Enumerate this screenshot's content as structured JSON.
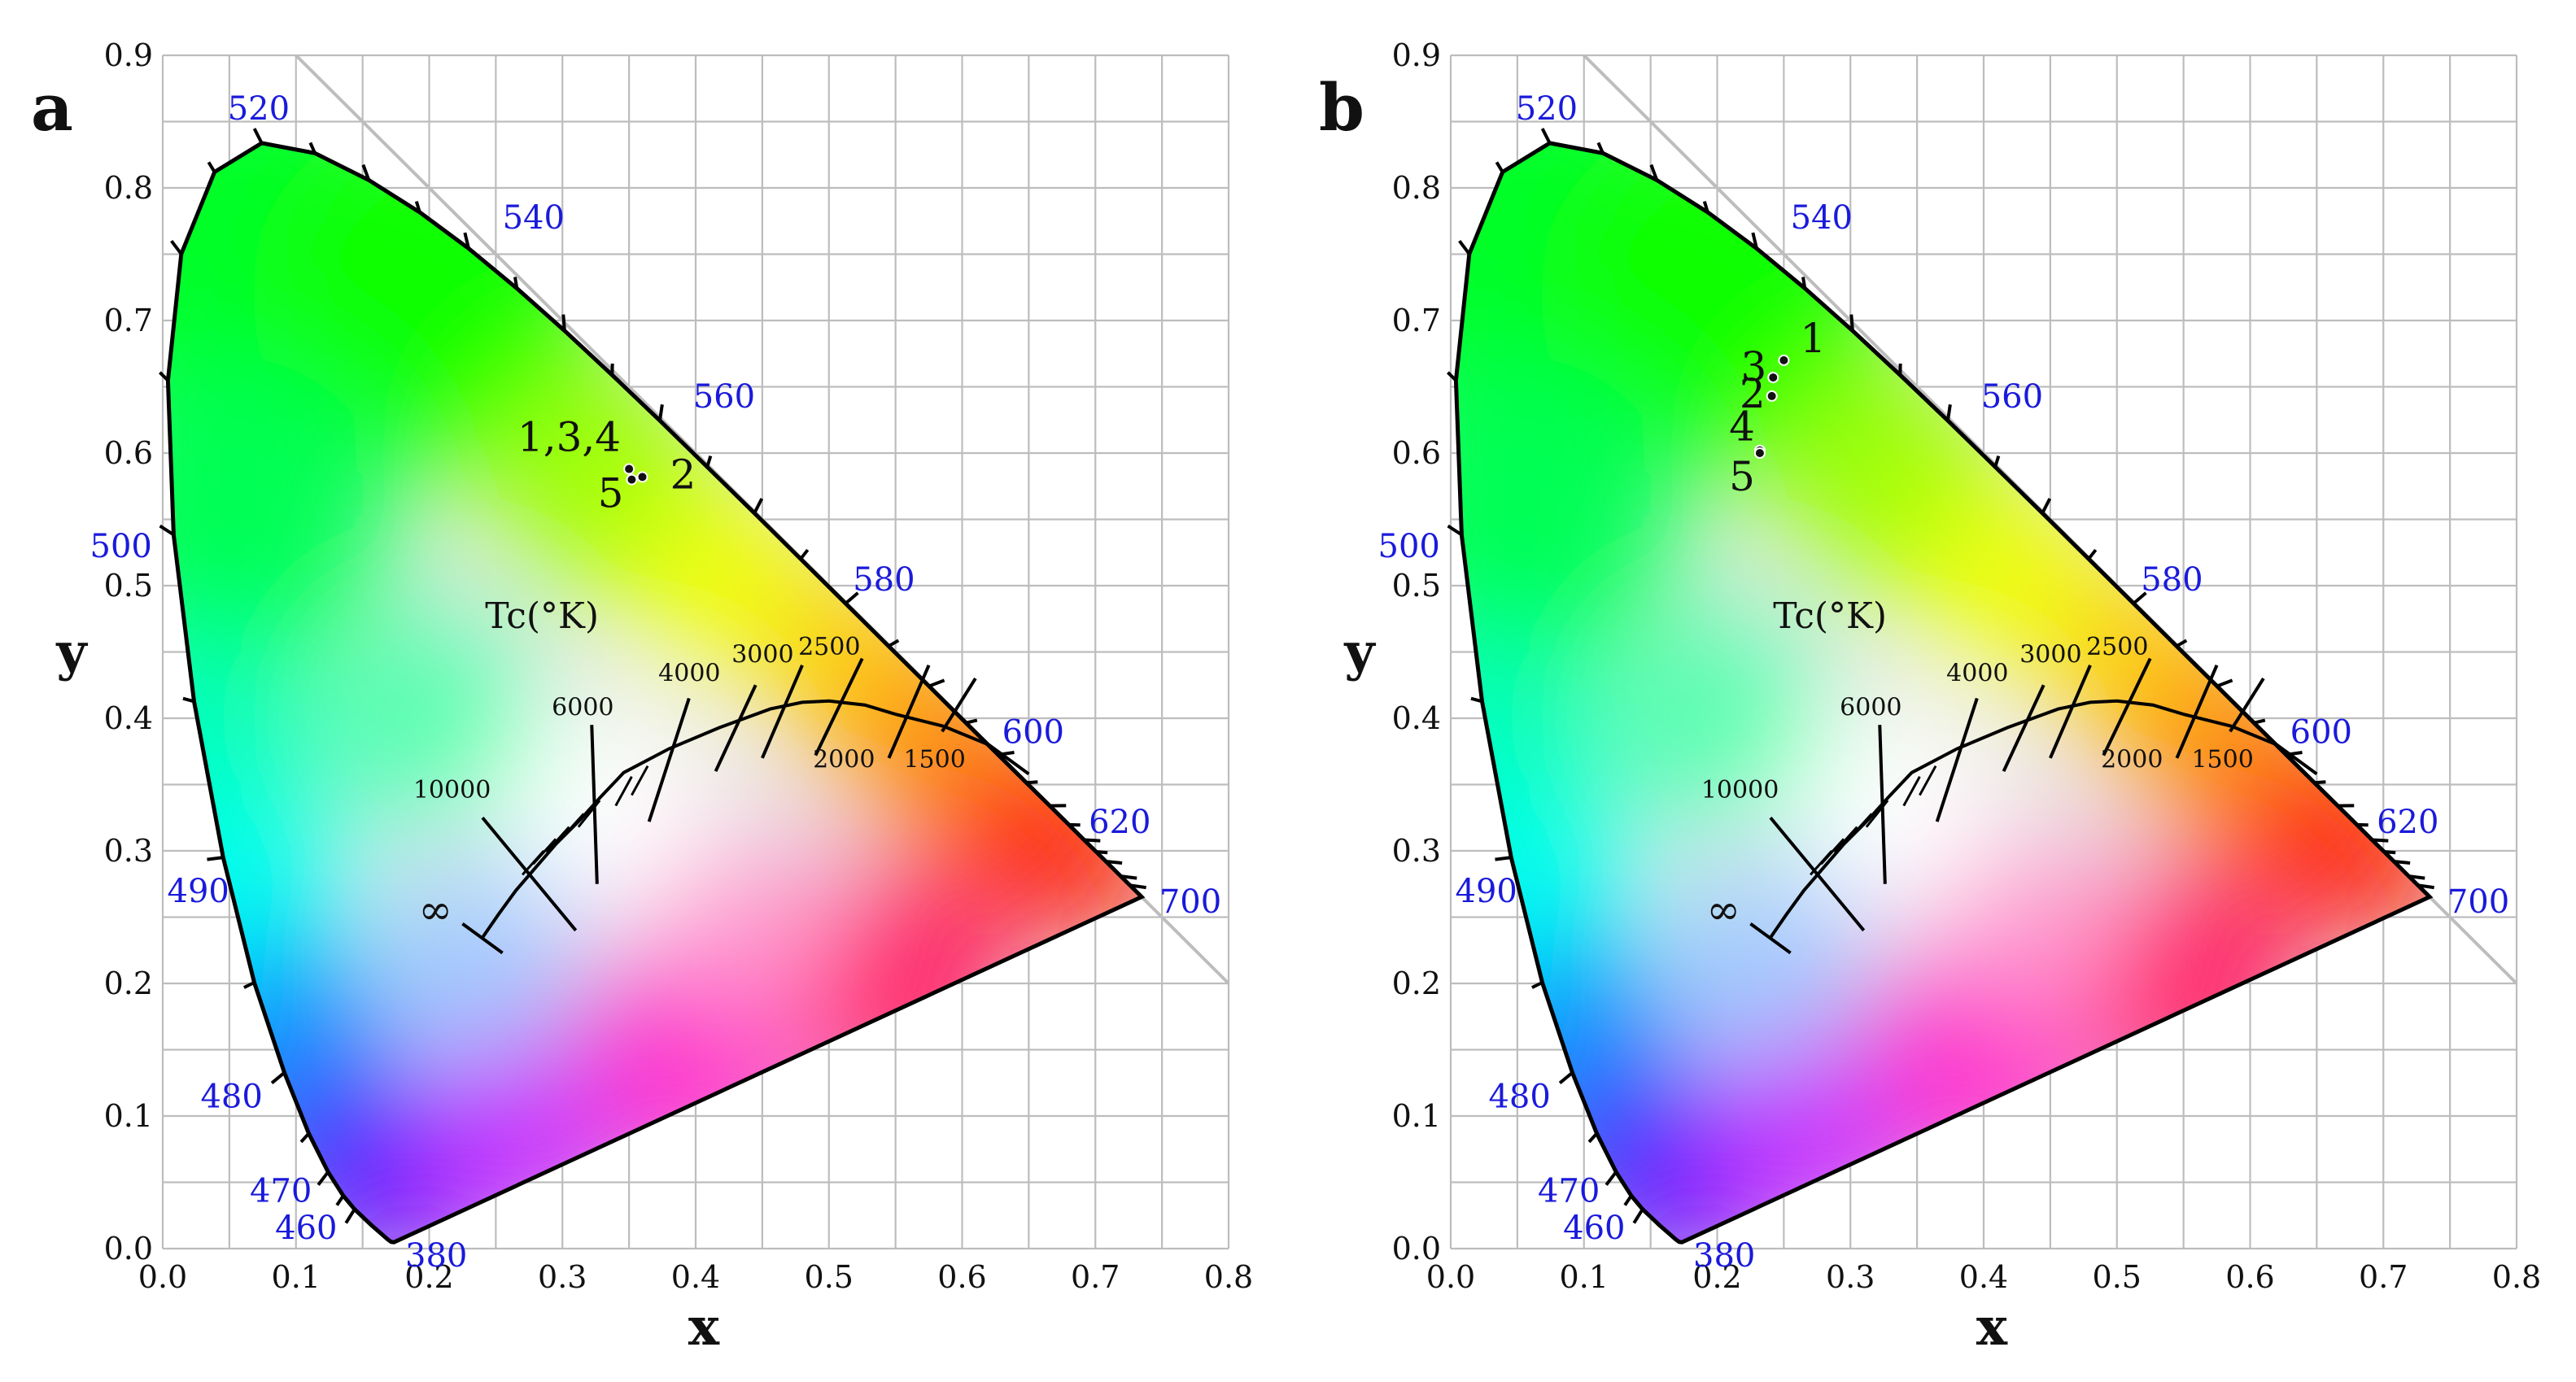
{
  "chart_data": [
    {
      "type": "scatter",
      "panel": "a",
      "title": "",
      "xlabel": "x",
      "ylabel": "y",
      "xlim": [
        0.0,
        0.8
      ],
      "ylim": [
        0.0,
        0.9
      ],
      "grid": true,
      "x_ticks": [
        "0.0",
        "0.1",
        "0.2",
        "0.3",
        "0.4",
        "0.5",
        "0.6",
        "0.7",
        "0.8"
      ],
      "y_ticks": [
        "0.0",
        "0.1",
        "0.2",
        "0.3",
        "0.4",
        "0.5",
        "0.6",
        "0.7",
        "0.8",
        "0.9"
      ],
      "wavelength_labels": [
        "520",
        "540",
        "560",
        "580",
        "600",
        "620",
        "700",
        "500",
        "490",
        "480",
        "470",
        "460",
        "380"
      ],
      "cct_title": "Tc(°K)",
      "cct_labels": [
        "10000",
        "6000",
        "4000",
        "3000",
        "2500",
        "2000",
        "1500",
        "∞"
      ],
      "points": [
        {
          "label": "1,3,4",
          "x": 0.35,
          "y": 0.588
        },
        {
          "label": "2",
          "x": 0.36,
          "y": 0.582
        },
        {
          "label": "5",
          "x": 0.352,
          "y": 0.58
        }
      ]
    },
    {
      "type": "scatter",
      "panel": "b",
      "title": "",
      "xlabel": "x",
      "ylabel": "y",
      "xlim": [
        0.0,
        0.8
      ],
      "ylim": [
        0.0,
        0.9
      ],
      "grid": true,
      "x_ticks": [
        "0.0",
        "0.1",
        "0.2",
        "0.3",
        "0.4",
        "0.5",
        "0.6",
        "0.7",
        "0.8"
      ],
      "y_ticks": [
        "0.0",
        "0.1",
        "0.2",
        "0.3",
        "0.4",
        "0.5",
        "0.6",
        "0.7",
        "0.8",
        "0.9"
      ],
      "wavelength_labels": [
        "520",
        "540",
        "560",
        "580",
        "600",
        "620",
        "700",
        "500",
        "490",
        "480",
        "470",
        "460",
        "380"
      ],
      "cct_title": "Tc(°K)",
      "cct_labels": [
        "10000",
        "6000",
        "4000",
        "3000",
        "2500",
        "2000",
        "1500",
        "∞"
      ],
      "points": [
        {
          "label": "1",
          "x": 0.25,
          "y": 0.67
        },
        {
          "label": "3",
          "x": 0.242,
          "y": 0.657
        },
        {
          "label": "2",
          "x": 0.241,
          "y": 0.643
        },
        {
          "label": "4",
          "x": 0.232,
          "y": 0.602
        },
        {
          "label": "5",
          "x": 0.232,
          "y": 0.6
        }
      ]
    }
  ],
  "panels": [
    {
      "letter": "a"
    },
    {
      "letter": "b"
    }
  ]
}
